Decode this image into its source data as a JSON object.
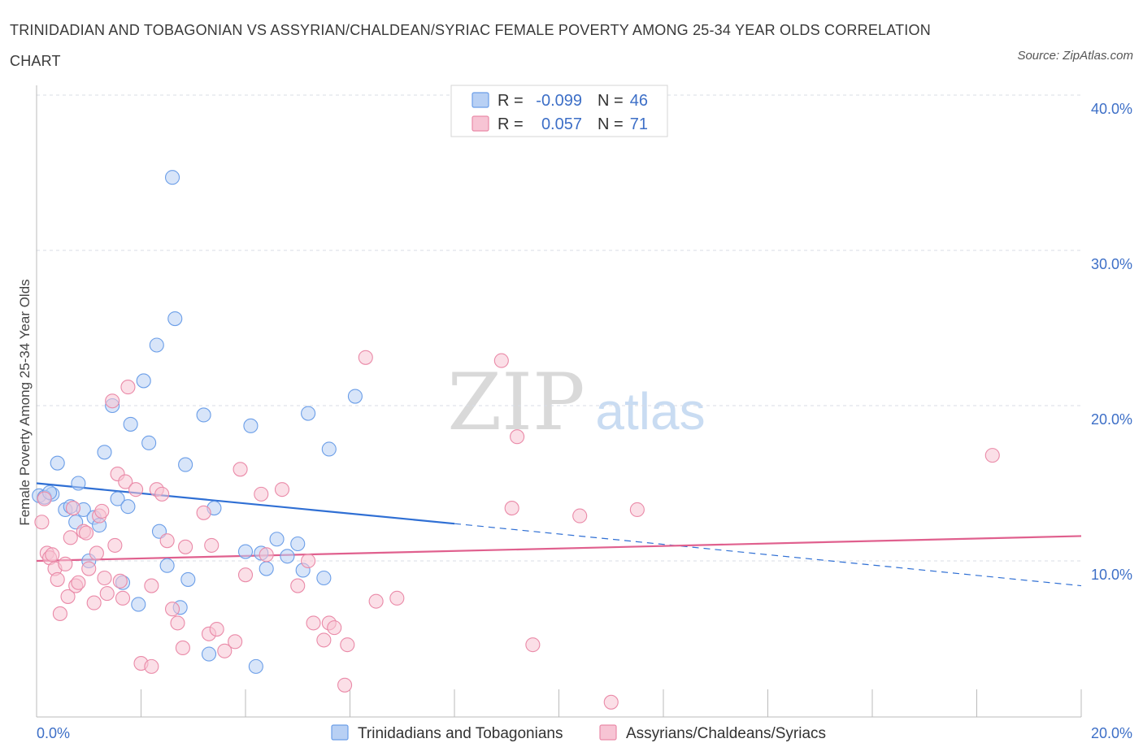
{
  "title": "TRINIDADIAN AND TOBAGONIAN VS ASSYRIAN/CHALDEAN/SYRIAC FEMALE POVERTY AMONG 25-34 YEAR OLDS CORRELATION CHART",
  "source": "Source: ZipAtlas.com",
  "watermark": {
    "zip": "ZIP",
    "atlas": "atlas"
  },
  "colors": {
    "blue": "#6b9ee8",
    "blue_fill": "#b8d0f4",
    "blue_line": "#2f6fd4",
    "pink": "#ea8aa8",
    "pink_fill": "#f7c4d4",
    "pink_line": "#e0608e",
    "tick_text": "#3d6fc7",
    "grid": "#d8dde6"
  },
  "legend": {
    "r_label": "R =",
    "n_label": "N =",
    "rows": [
      {
        "series": "blue",
        "r": "-0.099",
        "n": "46"
      },
      {
        "series": "pink",
        "r": "0.057",
        "n": "71"
      }
    ]
  },
  "chart_data": {
    "type": "scatter",
    "title": "TRINIDADIAN AND TOBAGONIAN VS ASSYRIAN/CHALDEAN/SYRIAC FEMALE POVERTY AMONG 25-34 YEAR OLDS CORRELATION CHART",
    "xlabel": "",
    "ylabel": "Female Poverty Among 25-34 Year Olds",
    "xlim": [
      0,
      20
    ],
    "ylim": [
      0,
      40
    ],
    "x_tick_labels": [
      "0.0%",
      "20.0%"
    ],
    "y_ticks": [
      10,
      20,
      30,
      40
    ],
    "y_tick_labels": [
      "10.0%",
      "20.0%",
      "30.0%",
      "40.0%"
    ],
    "grid": true,
    "series": [
      {
        "name": "Trinidadians and Tobagonians",
        "color": "blue",
        "points": [
          [
            0.05,
            14.2
          ],
          [
            0.3,
            14.3
          ],
          [
            0.4,
            16.3
          ],
          [
            0.55,
            13.3
          ],
          [
            0.65,
            13.5
          ],
          [
            0.75,
            12.5
          ],
          [
            0.8,
            15.0
          ],
          [
            0.9,
            13.3
          ],
          [
            1.0,
            10.0
          ],
          [
            1.1,
            12.8
          ],
          [
            1.2,
            12.3
          ],
          [
            1.3,
            17.0
          ],
          [
            1.45,
            20.0
          ],
          [
            1.55,
            14.0
          ],
          [
            1.65,
            8.6
          ],
          [
            1.75,
            13.5
          ],
          [
            1.8,
            18.8
          ],
          [
            1.95,
            7.2
          ],
          [
            2.05,
            21.6
          ],
          [
            2.15,
            17.6
          ],
          [
            2.3,
            23.9
          ],
          [
            2.35,
            11.9
          ],
          [
            2.5,
            9.7
          ],
          [
            2.6,
            34.7
          ],
          [
            2.65,
            25.6
          ],
          [
            2.75,
            7.0
          ],
          [
            2.85,
            16.2
          ],
          [
            2.9,
            8.8
          ],
          [
            3.2,
            19.4
          ],
          [
            3.3,
            4.0
          ],
          [
            3.4,
            13.4
          ],
          [
            4.0,
            10.6
          ],
          [
            4.1,
            18.7
          ],
          [
            4.2,
            3.2
          ],
          [
            4.3,
            10.5
          ],
          [
            4.4,
            9.5
          ],
          [
            4.6,
            11.4
          ],
          [
            4.8,
            10.3
          ],
          [
            5.0,
            11.1
          ],
          [
            5.1,
            9.4
          ],
          [
            5.2,
            19.5
          ],
          [
            5.5,
            8.9
          ],
          [
            5.6,
            17.2
          ],
          [
            6.1,
            20.6
          ],
          [
            0.15,
            14.1
          ],
          [
            0.25,
            14.4
          ]
        ]
      },
      {
        "name": "Assyrians/Chaldeans/Syriacs",
        "color": "pink",
        "points": [
          [
            0.1,
            12.5
          ],
          [
            0.2,
            10.5
          ],
          [
            0.25,
            10.2
          ],
          [
            0.3,
            10.4
          ],
          [
            0.35,
            9.5
          ],
          [
            0.4,
            8.8
          ],
          [
            0.45,
            6.6
          ],
          [
            0.55,
            9.8
          ],
          [
            0.6,
            7.7
          ],
          [
            0.65,
            11.5
          ],
          [
            0.7,
            13.4
          ],
          [
            0.75,
            8.4
          ],
          [
            0.8,
            8.6
          ],
          [
            0.9,
            11.9
          ],
          [
            0.95,
            11.8
          ],
          [
            1.0,
            9.5
          ],
          [
            1.1,
            7.3
          ],
          [
            1.15,
            10.5
          ],
          [
            1.2,
            12.9
          ],
          [
            1.25,
            13.2
          ],
          [
            1.3,
            8.9
          ],
          [
            1.35,
            7.9
          ],
          [
            1.45,
            20.3
          ],
          [
            1.5,
            11.0
          ],
          [
            1.55,
            15.6
          ],
          [
            1.6,
            8.7
          ],
          [
            1.65,
            7.6
          ],
          [
            1.7,
            15.1
          ],
          [
            1.75,
            21.2
          ],
          [
            1.9,
            14.6
          ],
          [
            2.0,
            3.4
          ],
          [
            2.2,
            8.4
          ],
          [
            2.2,
            3.2
          ],
          [
            2.3,
            14.6
          ],
          [
            2.4,
            14.3
          ],
          [
            2.5,
            11.3
          ],
          [
            2.6,
            6.9
          ],
          [
            2.7,
            6.0
          ],
          [
            2.8,
            4.4
          ],
          [
            2.85,
            10.9
          ],
          [
            3.2,
            13.1
          ],
          [
            3.3,
            5.3
          ],
          [
            3.35,
            11.0
          ],
          [
            3.45,
            5.6
          ],
          [
            3.6,
            4.2
          ],
          [
            3.8,
            4.8
          ],
          [
            3.9,
            15.9
          ],
          [
            4.0,
            9.1
          ],
          [
            4.3,
            14.3
          ],
          [
            4.4,
            10.4
          ],
          [
            4.7,
            14.6
          ],
          [
            5.0,
            8.4
          ],
          [
            5.2,
            10.0
          ],
          [
            5.3,
            6.0
          ],
          [
            5.5,
            4.9
          ],
          [
            5.6,
            6.0
          ],
          [
            5.7,
            5.7
          ],
          [
            5.9,
            2.0
          ],
          [
            5.95,
            4.6
          ],
          [
            6.3,
            23.1
          ],
          [
            6.5,
            7.4
          ],
          [
            6.9,
            7.6
          ],
          [
            8.9,
            22.9
          ],
          [
            9.2,
            18.0
          ],
          [
            9.5,
            4.6
          ],
          [
            9.1,
            13.4
          ],
          [
            10.4,
            12.9
          ],
          [
            11.0,
            0.9
          ],
          [
            11.5,
            13.3
          ],
          [
            18.3,
            16.8
          ],
          [
            0.15,
            14.0
          ]
        ]
      }
    ],
    "trend_lines": [
      {
        "series": "Trinidadians and Tobagonians",
        "from": [
          0,
          15.0
        ],
        "solid_to": [
          8.0,
          12.4
        ],
        "dashed_to": [
          20,
          8.4
        ]
      },
      {
        "series": "Assyrians/Chaldeans/Syriacs",
        "from": [
          0,
          10.0
        ],
        "to": [
          20,
          11.6
        ]
      }
    ],
    "legend_labels": [
      "Trinidadians and Tobagonians",
      "Assyrians/Chaldeans/Syriacs"
    ]
  }
}
